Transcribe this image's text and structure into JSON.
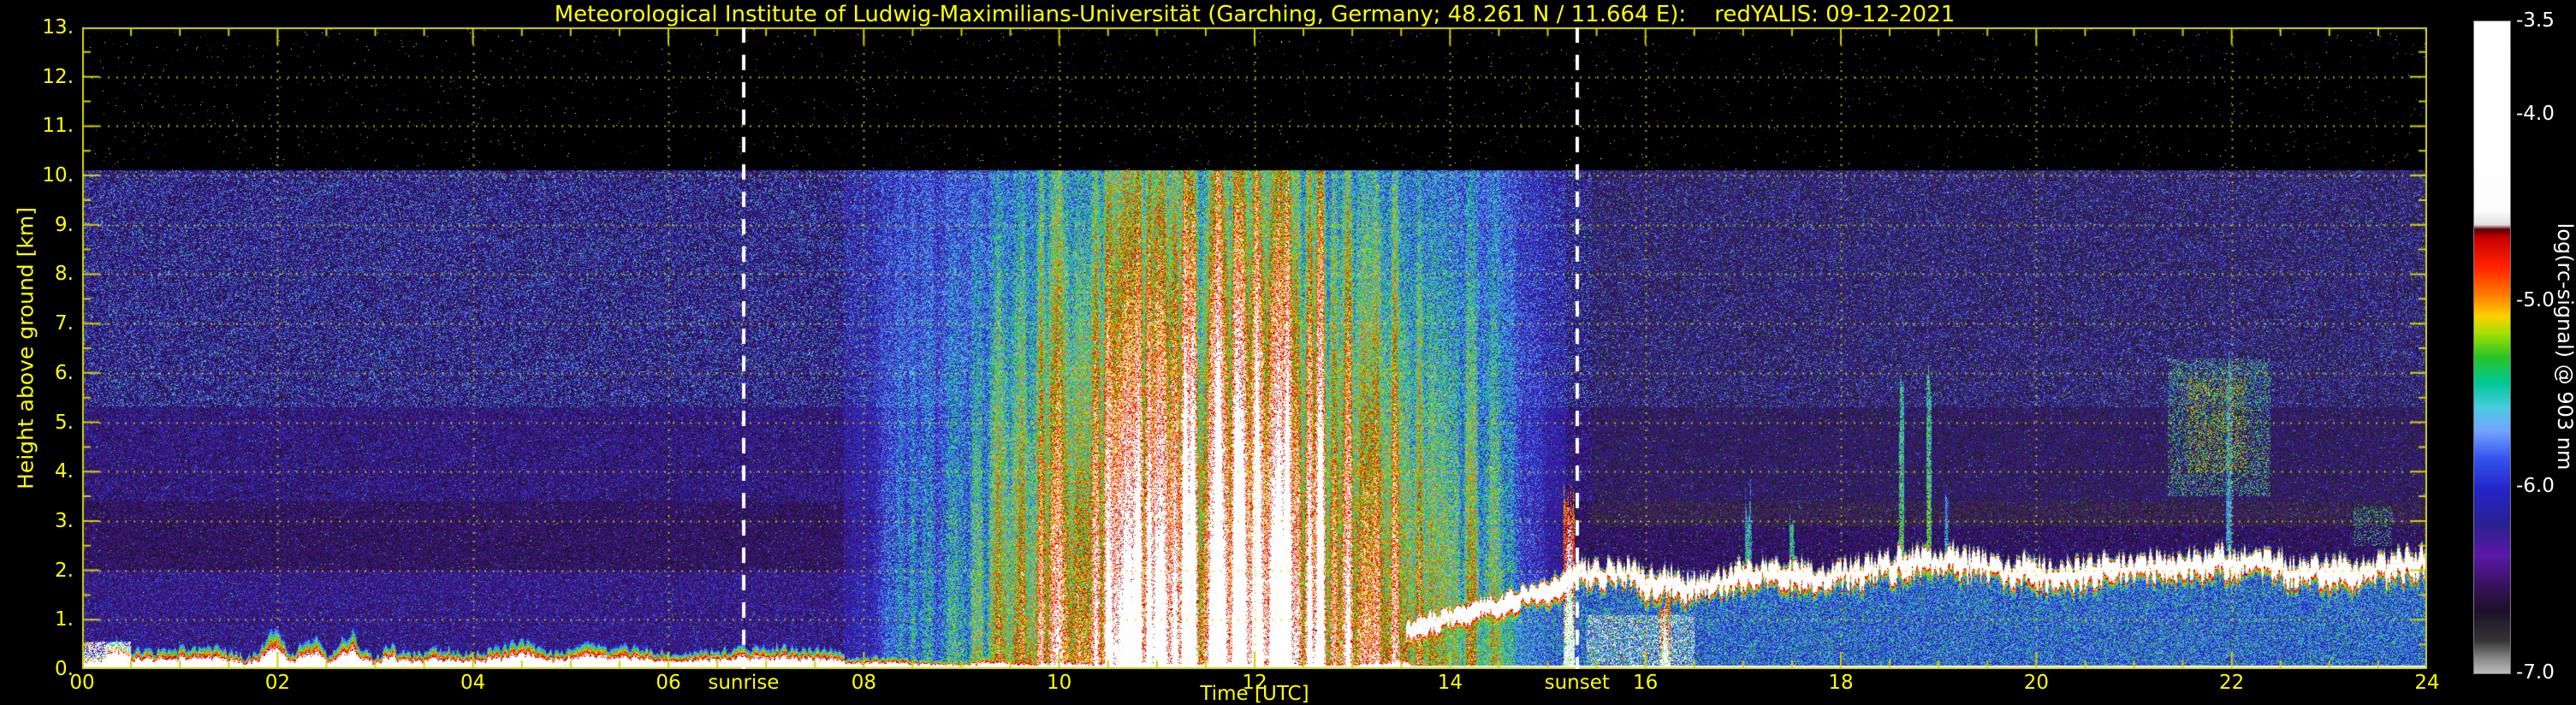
{
  "title": "Meteorological Institute of Ludwig-Maximilians-Universität (Garching, Germany; 48.261 N / 11.664 E):    redYALIS: 09-12-2021",
  "plot": {
    "x_label": "Time [UTC]",
    "y_label": "Height above ground [km]",
    "x_ticks": [
      "00",
      "02",
      "04",
      "06",
      "08",
      "10",
      "12",
      "14",
      "16",
      "18",
      "20",
      "22",
      "24"
    ],
    "y_ticks": [
      "0.",
      "1.",
      "2.",
      "3.",
      "4.",
      "5.",
      "6.",
      "7.",
      "8.",
      "9.",
      "10.",
      "11.",
      "12.",
      "13."
    ],
    "sunrise": {
      "label": "sunrise",
      "hour": 6.77
    },
    "sunset": {
      "label": "sunset",
      "hour": 15.3
    },
    "grid_color": "#dede00",
    "frame_color": "#d0d000",
    "text_color": "#ffff00"
  },
  "colorbar": {
    "label": "log(rc-signal) @ 903 nm",
    "tick_labels": [
      "-3.5",
      "-4.0",
      "-5.0",
      "-6.0",
      "-7.0"
    ],
    "tick_values": [
      -3.5,
      -4.0,
      -5.0,
      -6.0,
      -7.0
    ]
  },
  "chart_data": {
    "type": "heatmap",
    "title": "redYALIS lidar range-corrected signal quicklook, 09-12-2021, Garching (48.261 N / 11.664 E)",
    "x_axis": {
      "label": "Time [UTC]",
      "range": [
        0,
        24
      ],
      "gridline_step_h": 2
    },
    "y_axis": {
      "label": "Height above ground [km]",
      "range": [
        0,
        13
      ],
      "gridline_step_km": 1
    },
    "value_axis": {
      "label": "log(rc-signal) @ 903 nm",
      "range": [
        -7.0,
        -3.5
      ]
    },
    "max_range_km": 10.1,
    "sunrise_utc": 6.77,
    "sunset_utc": 15.3,
    "colormap": [
      [
        0.0,
        "#ffffff"
      ],
      [
        0.29,
        "#fdfdfd"
      ],
      [
        0.312,
        "#e0e0e0"
      ],
      [
        0.319,
        "#5a0000"
      ],
      [
        0.332,
        "#c80000"
      ],
      [
        0.375,
        "#ff2000"
      ],
      [
        0.418,
        "#ff7700"
      ],
      [
        0.452,
        "#ffd000"
      ],
      [
        0.478,
        "#a6e000"
      ],
      [
        0.515,
        "#28c428"
      ],
      [
        0.555,
        "#00c896"
      ],
      [
        0.592,
        "#48cce0"
      ],
      [
        0.628,
        "#74a4ff"
      ],
      [
        0.67,
        "#3454f0"
      ],
      [
        0.718,
        "#2424c8"
      ],
      [
        0.772,
        "#2a2090"
      ],
      [
        0.818,
        "#5a18a8"
      ],
      [
        0.865,
        "#38125e"
      ],
      [
        0.905,
        "#1c1028"
      ],
      [
        0.95,
        "#343434"
      ],
      [
        0.978,
        "#8a8a8a"
      ],
      [
        1.0,
        "#bdbdbd"
      ]
    ],
    "background_noise": {
      "bands": [
        {
          "y0": 0.0,
          "y1": 2.0,
          "base": -6.62,
          "amp": 0.85
        },
        {
          "y0": 2.0,
          "y1": 3.4,
          "base": -6.7,
          "amp": 0.62
        },
        {
          "y0": 3.4,
          "y1": 5.3,
          "base": -6.66,
          "amp": 0.85
        },
        {
          "y0": 5.3,
          "y1": 10.1,
          "base": -6.68,
          "amp": 1.2
        }
      ],
      "green_dot_p": 0.012,
      "bright_dot_p": 0.00075,
      "above_range_dot_p": 0.005,
      "evening_attenuation": 0.15
    },
    "solar_noise_plume": {
      "start": 7.65,
      "end": 15.35,
      "peak": 11.7,
      "sigma": 2.05,
      "v_base": -6.45,
      "gain": 2.2,
      "height_falloff": 0.118,
      "jitter": 0.95
    },
    "plume_streaks": [
      10.92,
      11.28,
      11.63,
      12.02,
      12.34,
      12.66,
      12.98
    ],
    "features": [
      {
        "type": "surface",
        "x0": 0.0,
        "x1": 7.8,
        "top_base": 0.34,
        "top_amp": 0.14,
        "jag": 0.1,
        "seed": 21,
        "spikes": [
          [
            0.35,
            0.28,
            0.15
          ],
          [
            1.95,
            0.42,
            0.2
          ],
          [
            2.35,
            0.5,
            0.18
          ],
          [
            2.75,
            0.45,
            0.22
          ],
          [
            3.15,
            0.28,
            0.15
          ],
          [
            4.55,
            0.22,
            0.25
          ],
          [
            5.15,
            0.18,
            0.2
          ]
        ]
      },
      {
        "type": "surface",
        "x0": 7.8,
        "x1": 13.6,
        "top_base": 0.2,
        "top_amp": 0.08,
        "jag": 0.06,
        "seed": 22,
        "spikes": []
      },
      {
        "type": "patch",
        "x0": 0.0,
        "x1": 0.5,
        "y0": 0.0,
        "y1": 0.55,
        "density": 0.55,
        "vmin": -4.4,
        "vmax": -3.7
      },
      {
        "type": "column",
        "x": 9.7,
        "w": 0.04,
        "y0": 0,
        "top": 0.85,
        "v0": -4.6,
        "vtop": -5.4
      },
      {
        "type": "column",
        "x": 10.2,
        "w": 0.04,
        "y0": 0,
        "top": 0.95,
        "v0": -4.6,
        "vtop": -5.4
      },
      {
        "type": "column",
        "x": 10.95,
        "w": 0.05,
        "y0": 0,
        "top": 1.7,
        "v0": -4.4,
        "vtop": -5.3
      },
      {
        "type": "column",
        "x": 11.3,
        "w": 0.045,
        "y0": 0,
        "top": 2.3,
        "v0": -4.3,
        "vtop": -5.3
      },
      {
        "type": "column",
        "x": 11.63,
        "w": 0.05,
        "y0": 0,
        "top": 3.0,
        "v0": -4.3,
        "vtop": -5.3
      },
      {
        "type": "column",
        "x": 11.98,
        "w": 0.06,
        "y0": 0,
        "top": 3.35,
        "v0": -4.2,
        "vtop": -5.3
      },
      {
        "type": "column",
        "x": 12.3,
        "w": 0.05,
        "y0": 0,
        "top": 2.6,
        "v0": -4.3,
        "vtop": -5.3
      },
      {
        "type": "column",
        "x": 12.62,
        "w": 0.06,
        "y0": 0,
        "top": 3.2,
        "v0": -4.2,
        "vtop": -5.3
      },
      {
        "type": "column",
        "x": 12.95,
        "w": 0.05,
        "y0": 0,
        "top": 2.3,
        "v0": -4.3,
        "vtop": -5.3
      },
      {
        "type": "column",
        "x": 13.15,
        "w": 0.04,
        "y0": 0,
        "top": 1.5,
        "v0": -4.4,
        "vtop": -5.3
      },
      {
        "type": "elevated",
        "points": [
          [
            13.55,
            0.85
          ],
          [
            14.2,
            1.2
          ],
          [
            14.8,
            1.55
          ],
          [
            15.35,
            1.95
          ]
        ],
        "thick": 0.26,
        "core_v": -3.85,
        "jag": 0.1,
        "seed": 31,
        "subcloud": true
      },
      {
        "type": "column",
        "x": 15.22,
        "w": 0.055,
        "y0": 0,
        "top": 3.35,
        "v0": -3.9,
        "vtop": -4.6
      },
      {
        "type": "elevated",
        "points": [
          [
            15.35,
            1.95
          ],
          [
            15.8,
            2.0
          ],
          [
            16.2,
            1.78
          ],
          [
            16.6,
            1.72
          ],
          [
            17.0,
            1.95
          ],
          [
            17.4,
            2.0
          ],
          [
            17.9,
            1.95
          ],
          [
            18.35,
            2.1
          ],
          [
            18.75,
            2.3
          ],
          [
            19.15,
            2.25
          ],
          [
            19.6,
            2.05
          ],
          [
            20.1,
            2.0
          ],
          [
            20.7,
            2.05
          ],
          [
            21.2,
            2.1
          ],
          [
            21.7,
            2.2
          ],
          [
            22.1,
            2.25
          ],
          [
            22.6,
            2.05
          ],
          [
            23.1,
            2.0
          ],
          [
            23.5,
            2.1
          ],
          [
            24.0,
            2.2
          ]
        ],
        "thick": 0.3,
        "core_v": -3.8,
        "jag": 0.18,
        "seed": 32,
        "subcloud": true
      },
      {
        "type": "patch",
        "x0": 15.4,
        "x1": 16.5,
        "y0": 0.0,
        "y1": 1.1,
        "density": 0.3,
        "vmin": -4.8,
        "vmax": -3.8
      },
      {
        "type": "column",
        "x": 16.2,
        "w": 0.06,
        "y0": 0,
        "top": 1.4,
        "v0": -4.0,
        "vtop": -4.6
      },
      {
        "type": "column",
        "x": 17.05,
        "w": 0.035,
        "y0": 1.6,
        "top": 3.4,
        "v0": -5.0,
        "vtop": -5.4
      },
      {
        "type": "column",
        "x": 17.5,
        "w": 0.025,
        "y0": 1.6,
        "top": 2.9,
        "v0": -4.9,
        "vtop": -5.3
      },
      {
        "type": "column",
        "x": 18.62,
        "w": 0.025,
        "y0": 1.8,
        "top": 5.6,
        "v0": -4.9,
        "vtop": -5.3
      },
      {
        "type": "column",
        "x": 18.9,
        "w": 0.025,
        "y0": 1.8,
        "top": 5.9,
        "v0": -4.9,
        "vtop": -5.3
      },
      {
        "type": "column",
        "x": 19.08,
        "w": 0.02,
        "y0": 1.8,
        "top": 3.2,
        "v0": -5.2,
        "vtop": -5.5
      },
      {
        "type": "patch",
        "x0": 21.35,
        "x1": 22.4,
        "y0": 3.5,
        "y1": 6.3,
        "density": 0.28,
        "vmin": -5.8,
        "vmax": -5.1
      },
      {
        "type": "patch",
        "x0": 21.55,
        "x1": 22.15,
        "y0": 4.0,
        "y1": 5.9,
        "density": 0.4,
        "vmin": -5.6,
        "vmax": -4.9
      },
      {
        "type": "column",
        "x": 21.97,
        "w": 0.03,
        "y0": 2.4,
        "top": 6.1,
        "v0": -5.3,
        "vtop": -5.5
      },
      {
        "type": "patch",
        "x0": 23.25,
        "x1": 23.65,
        "y0": 2.5,
        "y1": 3.3,
        "density": 0.22,
        "vmin": -5.7,
        "vmax": -5.2
      }
    ],
    "ground_overlap_line": {
      "y_top_km": 0.065,
      "v": -3.75
    }
  }
}
